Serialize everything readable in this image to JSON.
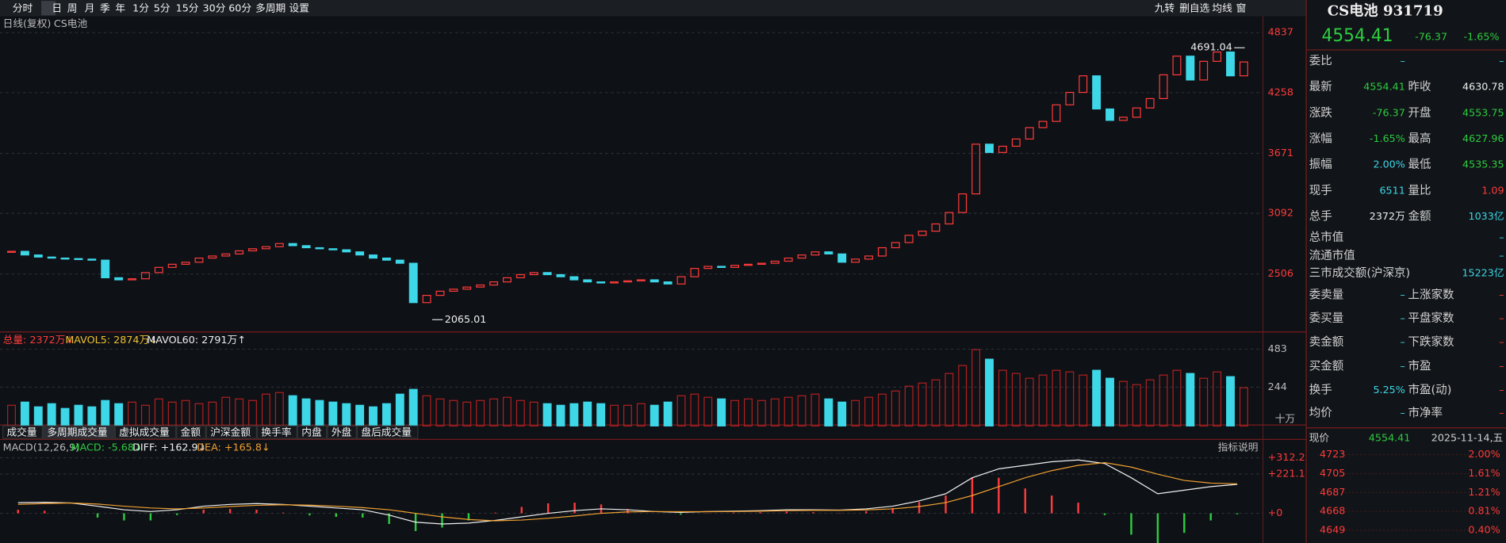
{
  "toolbar": {
    "periods": [
      "分时",
      "日",
      "周",
      "月",
      "季",
      "年",
      "1分",
      "5分",
      "15分",
      "30分",
      "60分",
      "多周期",
      "设置"
    ],
    "right": [
      "九转",
      "删自选",
      "均线",
      "窗"
    ]
  },
  "chart_label": "日线(复权)",
  "chart_name": "CS电池",
  "price": {
    "ylim": [
      1956,
      4967
    ],
    "yticks": [
      4837,
      4258,
      3671,
      3092,
      2506
    ],
    "high": 4691.04,
    "low": 2065.01,
    "closes": [
      2725,
      2690,
      2670,
      2660,
      2655,
      2650,
      2640,
      2470,
      2450,
      2460,
      2520,
      2570,
      2600,
      2620,
      2660,
      2680,
      2700,
      2730,
      2750,
      2770,
      2800,
      2780,
      2760,
      2750,
      2740,
      2720,
      2690,
      2660,
      2640,
      2610,
      2230,
      2300,
      2340,
      2360,
      2380,
      2400,
      2430,
      2470,
      2500,
      2520,
      2500,
      2480,
      2450,
      2430,
      2420,
      2430,
      2440,
      2450,
      2430,
      2410,
      2480,
      2560,
      2580,
      2570,
      2590,
      2600,
      2610,
      2630,
      2660,
      2690,
      2720,
      2700,
      2620,
      2650,
      2680,
      2760,
      2810,
      2880,
      2920,
      2990,
      3100,
      3280,
      3760,
      3680,
      3740,
      3810,
      3920,
      3980,
      4140,
      4260,
      4420,
      4100,
      3990,
      4020,
      4110,
      4200,
      4430,
      4610,
      4380,
      4560,
      4650,
      4420,
      4554
    ]
  },
  "volume": {
    "header": "总量: 2372万↓",
    "mavol5": "MAVOL5: 2874万↓",
    "mavol60": "MAVOL60: 2791万↑",
    "unit": "十万",
    "ylim": [
      0,
      567
    ],
    "yticks": [
      483,
      244
    ],
    "values": [
      130,
      150,
      120,
      140,
      110,
      130,
      120,
      160,
      140,
      150,
      130,
      170,
      150,
      160,
      140,
      150,
      180,
      170,
      160,
      200,
      210,
      190,
      170,
      160,
      150,
      140,
      130,
      120,
      140,
      200,
      230,
      190,
      170,
      160,
      150,
      160,
      170,
      180,
      160,
      150,
      140,
      130,
      140,
      150,
      140,
      130,
      130,
      140,
      130,
      150,
      190,
      200,
      180,
      170,
      160,
      170,
      160,
      170,
      180,
      190,
      200,
      170,
      150,
      160,
      180,
      200,
      220,
      250,
      270,
      290,
      330,
      380,
      480,
      420,
      350,
      330,
      300,
      320,
      350,
      340,
      320,
      350,
      300,
      280,
      260,
      290,
      320,
      350,
      330,
      300,
      340,
      310,
      240
    ]
  },
  "tabs": [
    "成交量",
    "多周期成交量",
    "虚拟成交量",
    "金额",
    "沪深金额",
    "换手率",
    "内盘",
    "外盘",
    "盘后成交量"
  ],
  "macd": {
    "name": "MACD(12,26,9)",
    "macd_label": "MACD: -5.68↓",
    "diff_label": "DIFF: +162.9↓",
    "dea_label": "DEA: +165.8↓",
    "help": "指标说明",
    "ylim": [
      -167,
      405
    ],
    "yticks": [
      {
        "value": 312.2,
        "label": "+312.2"
      },
      {
        "value": 221.1,
        "label": "+221.1"
      },
      {
        "value": 0,
        "label": "+0"
      }
    ],
    "diff": [
      60,
      62,
      58,
      40,
      20,
      10,
      20,
      40,
      50,
      55,
      50,
      40,
      30,
      20,
      -10,
      -50,
      -60,
      -55,
      -40,
      -20,
      0,
      15,
      25,
      20,
      10,
      5,
      10,
      12,
      15,
      20,
      20,
      18,
      25,
      40,
      70,
      110,
      200,
      250,
      270,
      290,
      300,
      280,
      200,
      110,
      130,
      150,
      163
    ],
    "dea": [
      50,
      55,
      58,
      52,
      40,
      30,
      25,
      30,
      38,
      45,
      48,
      46,
      40,
      32,
      20,
      0,
      -20,
      -35,
      -42,
      -38,
      -28,
      -15,
      0,
      8,
      10,
      9,
      9,
      10,
      12,
      15,
      17,
      17,
      19,
      25,
      38,
      60,
      100,
      150,
      200,
      240,
      270,
      285,
      260,
      220,
      185,
      170,
      166
    ],
    "bars": [
      20,
      14,
      0,
      -24,
      -40,
      -40,
      -10,
      20,
      24,
      20,
      4,
      -12,
      -20,
      -24,
      -60,
      -100,
      -80,
      -40,
      4,
      36,
      56,
      60,
      50,
      24,
      0,
      -8,
      2,
      4,
      6,
      10,
      6,
      2,
      12,
      30,
      64,
      100,
      200,
      200,
      140,
      100,
      60,
      -10,
      -120,
      -220,
      -110,
      -40,
      -6
    ]
  },
  "quote": {
    "title": "CS电池 931719",
    "price": "4554.41",
    "change": "-76.37",
    "pct": "-1.65%",
    "rows": [
      {
        "label": "委比",
        "value": "–",
        "value2": "–"
      },
      {
        "label": "最新",
        "value": "4554.41",
        "label2": "昨收",
        "value2": "4630.78"
      },
      {
        "label": "涨跌",
        "value": "-76.37",
        "label2": "开盘",
        "value2": "4553.75"
      },
      {
        "label": "涨幅",
        "value": "-1.65%",
        "label2": "最高",
        "value2": "4627.96"
      },
      {
        "label": "振幅",
        "value": "2.00%",
        "label2": "最低",
        "value2": "4535.35"
      },
      {
        "label": "现手",
        "value": "6511",
        "label2": "量比",
        "value2": "1.09"
      },
      {
        "label": "总手",
        "value": "2372万",
        "label2": "金额",
        "value2": "1033亿"
      },
      {
        "label": "总市值",
        "value2": "–"
      },
      {
        "label": "流通市值",
        "value2": "–"
      },
      {
        "label": "三市成交额(沪深京)",
        "value2": "15223亿"
      },
      {
        "label": "委卖量",
        "value": "–",
        "label2": "上涨家数",
        "value2": "–"
      },
      {
        "label": "委买量",
        "value": "–",
        "label2": "平盘家数",
        "value2": "–"
      },
      {
        "label": "卖金额",
        "value": "–",
        "label2": "下跌家数",
        "value2": "–"
      },
      {
        "label": "买金额",
        "value": "–",
        "label2": "市盈",
        "value2": "–"
      },
      {
        "label": "换手",
        "value": "5.25%",
        "label2": "市盈(动)",
        "value2": "–"
      },
      {
        "label": "均价",
        "value": "–",
        "label2": "市净率",
        "value2": "–"
      }
    ],
    "now_label": "现价",
    "now_price": "4554.41",
    "date": "2025-11-14,五",
    "mini_prices": [
      "4723",
      "4705",
      "4687",
      "4668",
      "4649"
    ],
    "mini_pcts": [
      "2.00%",
      "1.61%",
      "1.21%",
      "0.81%",
      "0.40%"
    ]
  }
}
